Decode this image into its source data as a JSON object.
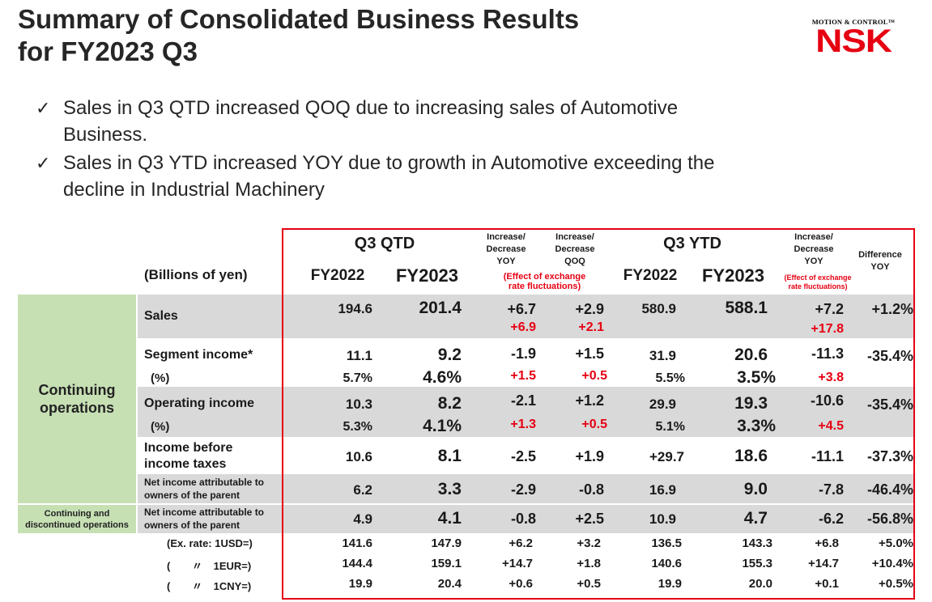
{
  "title": {
    "line1": "Summary of Consolidated Business Results",
    "line2": "for FY2023 Q3"
  },
  "logo": {
    "tagline": "MOTION & CONTROL™",
    "brand": "NSK"
  },
  "bullets": [
    {
      "mark": "✓",
      "line1": "Sales in Q3 QTD increased QOQ due to increasing sales of Automotive",
      "line2": "Business."
    },
    {
      "mark": "✓",
      "line1": "Sales in Q3 YTD increased YOY due to growth in Automotive exceeding the",
      "line2": "decline in Industrial Machinery"
    }
  ],
  "table": {
    "units": "(Billions of yen)",
    "q3qtd": "Q3 QTD",
    "q3ytd": "Q3 YTD",
    "fy2022": "FY2022",
    "fy2023": "FY2023",
    "inc_yoy": [
      "Increase/",
      "Decrease",
      "YOY"
    ],
    "inc_qoq": [
      "Increase/",
      "Decrease",
      "QOQ"
    ],
    "inc_ytd": [
      "Increase/",
      "Decrease",
      "YOY"
    ],
    "diff_yoy": [
      "Difference",
      "YOY"
    ],
    "fx_note": [
      "(Effect of exchange",
      "rate fluctuations)"
    ],
    "fx_note_small": [
      "(Effect of exchange",
      "rate fluctuations)"
    ],
    "continuing": [
      "Continuing",
      "operations"
    ],
    "cont_disc": [
      "Continuing and",
      "discontinued operations"
    ],
    "rows": {
      "sales": {
        "label": "Sales",
        "q22": "194.6",
        "q23": "201.4",
        "yoy": "+6.7",
        "qoq": "+2.9",
        "y22": "580.9",
        "y23": "588.1",
        "ytd": "+7.2",
        "diff": "+1.2%",
        "fx_yoy": "+6.9",
        "fx_qoq": "+2.1",
        "fx_ytd": "+17.8"
      },
      "seg": {
        "label": "Segment income*",
        "q22": "11.1",
        "q23": "9.2",
        "yoy": "-1.9",
        "qoq": "+1.5",
        "y22": "31.9",
        "y23": "20.6",
        "ytd": "-11.3",
        "diff": "-35.4%"
      },
      "seg_pct": {
        "label": "(%)",
        "q22": "5.7%",
        "q23": "4.6%",
        "yoy": "+1.5",
        "qoq": "+0.5",
        "y22": "5.5%",
        "y23": "3.5%",
        "ytd": "+3.8"
      },
      "op": {
        "label": "Operating income",
        "q22": "10.3",
        "q23": "8.2",
        "yoy": "-2.1",
        "qoq": "+1.2",
        "y22": "29.9",
        "y23": "19.3",
        "ytd": "-10.6",
        "diff": "-35.4%"
      },
      "op_pct": {
        "label": "(%)",
        "q22": "5.3%",
        "q23": "4.1%",
        "yoy": "+1.3",
        "qoq": "+0.5",
        "y22": "5.1%",
        "y23": "3.3%",
        "ytd": "+4.5"
      },
      "ibt": {
        "label1": "Income before",
        "label2": "income taxes",
        "q22": "10.6",
        "q23": "8.1",
        "yoy": "-2.5",
        "qoq": "+1.9",
        "y22": "+29.7",
        "y23": "18.6",
        "ytd": "-11.1",
        "diff": "-37.3%"
      },
      "ni": {
        "label1": "Net income attributable to",
        "label2": "owners of the parent",
        "q22": "6.2",
        "q23": "3.3",
        "yoy": "-2.9",
        "qoq": "-0.8",
        "y22": "16.9",
        "y23": "9.0",
        "ytd": "-7.8",
        "diff": "-46.4%"
      },
      "ni2": {
        "label1": "Net income attributable to",
        "label2": "owners of the parent",
        "q22": "4.9",
        "q23": "4.1",
        "yoy": "-0.8",
        "qoq": "+2.5",
        "y22": "10.9",
        "y23": "4.7",
        "ytd": "-6.2",
        "diff": "-56.8%"
      },
      "usd": {
        "label": "(Ex. rate: 1USD=)",
        "q22": "141.6",
        "q23": "147.9",
        "yoy": "+6.2",
        "qoq": "+3.2",
        "y22": "136.5",
        "y23": "143.3",
        "ytd": "+6.8",
        "diff": "+5.0%"
      },
      "eur": {
        "open": "(",
        "ditto": "〃",
        "label": "1EUR=)",
        "q22": "144.4",
        "q23": "159.1",
        "yoy": "+14.7",
        "qoq": "+1.8",
        "y22": "140.6",
        "y23": "155.3",
        "ytd": "+14.7",
        "diff": "+10.4%"
      },
      "cny": {
        "open": "(",
        "ditto": "〃",
        "label": "1CNY=)",
        "q22": "19.9",
        "q23": "20.4",
        "yoy": "+0.6",
        "qoq": "+0.5",
        "y22": "19.9",
        "y23": "20.0",
        "ytd": "+0.1",
        "diff": "+0.5%"
      }
    }
  }
}
